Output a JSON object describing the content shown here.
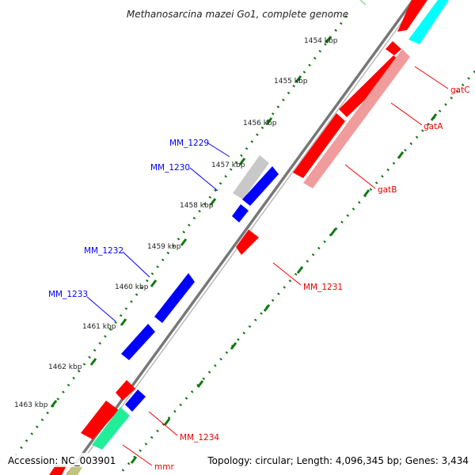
{
  "title": "Methanosarcina mazei Go1, complete genome",
  "footer": {
    "accession": "Accession: NC_003901",
    "summary": "Topology: circular; Length: 4,096,345 bp; Genes: 3,434"
  },
  "kbp_labels": [
    "1454 kbp",
    "1455 kbp",
    "1456 kbp",
    "1457 kbp",
    "1458 kbp",
    "1459 kbp",
    "1460 kbp",
    "1461 kbp",
    "1462 kbp",
    "1463 kbp"
  ],
  "genes_top": [
    "MM_1229",
    "MM_1230",
    "MM_1232",
    "MM_1233"
  ],
  "genes_bottom": [
    "gatC",
    "gatA",
    "gatB",
    "MM_1231",
    "MM_1234",
    "mmr"
  ],
  "colors": {
    "forward": "#ff0000",
    "forward_light": "#f19c9c",
    "reverse": "#0000ff",
    "pseudo": "#c8c8c8",
    "cyan": "#00ffff",
    "green": "#22ee99",
    "ticks": "#117711",
    "top_label": "#0000ff",
    "bottom_label": "#ee0000",
    "backbone": "#777777"
  }
}
